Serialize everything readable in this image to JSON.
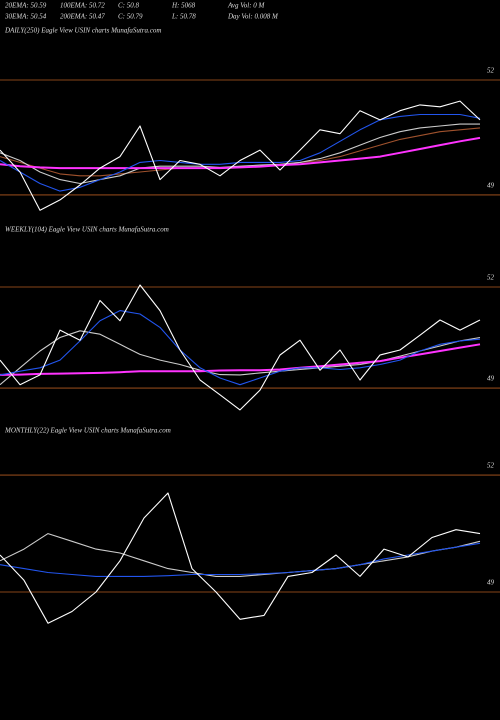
{
  "header_stats": [
    [
      "20EMA: 50.59",
      "100EMA: 50.72",
      "C: 50.8",
      "H: 5068",
      "Avg Vol: 0  M"
    ],
    [
      "30EMA: 50.54",
      "200EMA: 50.47",
      "C: 50.79",
      "L: 50.78",
      "Day Vol: 0.008 M"
    ]
  ],
  "chart_data": [
    {
      "type": "line",
      "title": "DAILY(250) Eagle  View  USIN  charts MunafaSutra.com",
      "ylim": [
        48.2,
        53
      ],
      "yticks": [
        49,
        52
      ],
      "grid": true,
      "series": [
        {
          "color": "#a0522d",
          "values": [
            50.0,
            49.85,
            49.7,
            49.55,
            49.5,
            49.5,
            49.55,
            49.6,
            49.65,
            49.7,
            49.7,
            49.7,
            49.72,
            49.75,
            49.8,
            49.85,
            49.9,
            50.0,
            50.15,
            50.3,
            50.45,
            50.55,
            50.65,
            50.7,
            50.75
          ]
        },
        {
          "color": "#cccccc",
          "values": [
            50.1,
            49.9,
            49.6,
            49.4,
            49.3,
            49.4,
            49.5,
            49.7,
            49.75,
            49.75,
            49.75,
            49.72,
            49.75,
            49.78,
            49.8,
            49.85,
            49.95,
            50.1,
            50.3,
            50.5,
            50.65,
            50.75,
            50.8,
            50.85,
            50.85
          ]
        },
        {
          "color": "#ff33ff",
          "values": [
            49.8,
            49.75,
            49.72,
            49.7,
            49.7,
            49.7,
            49.7,
            49.7,
            49.7,
            49.7,
            49.7,
            49.7,
            49.72,
            49.74,
            49.78,
            49.8,
            49.85,
            49.9,
            49.95,
            50.0,
            50.1,
            50.2,
            50.3,
            50.4,
            50.49
          ]
        },
        {
          "color": "#2255ee",
          "values": [
            49.9,
            49.6,
            49.3,
            49.1,
            49.2,
            49.4,
            49.6,
            49.85,
            49.9,
            49.85,
            49.8,
            49.8,
            49.85,
            49.85,
            49.85,
            49.9,
            50.1,
            50.4,
            50.7,
            50.96,
            51.05,
            51.1,
            51.1,
            51.1,
            51.0
          ]
        },
        {
          "color": "#ffffff",
          "values": [
            50.17,
            49.6,
            48.6,
            48.87,
            49.26,
            49.7,
            50.0,
            50.8,
            49.4,
            49.9,
            49.8,
            49.5,
            49.9,
            50.17,
            49.65,
            50.17,
            50.7,
            50.6,
            51.2,
            50.96,
            51.2,
            51.35,
            51.3,
            51.45,
            50.96
          ]
        }
      ]
    },
    {
      "type": "line",
      "title": "WEEKLY(104) Eagle  View  USIN  charts MunafaSutra.com",
      "ylim": [
        48.2,
        53.2
      ],
      "yticks": [
        49,
        52
      ],
      "grid": true,
      "series": [
        {
          "color": "#cccccc",
          "values": [
            49.1,
            49.6,
            50.1,
            50.5,
            50.7,
            50.6,
            50.3,
            50.0,
            49.83,
            49.7,
            49.53,
            49.4,
            49.39,
            49.45,
            49.5,
            49.55,
            49.6,
            49.65,
            49.7,
            49.8,
            49.95,
            50.1,
            50.25,
            50.4,
            50.5
          ]
        },
        {
          "color": "#ff33ff",
          "values": [
            49.39,
            49.4,
            49.42,
            49.43,
            49.44,
            49.45,
            49.47,
            49.5,
            49.5,
            49.5,
            49.5,
            49.52,
            49.53,
            49.53,
            49.55,
            49.6,
            49.65,
            49.7,
            49.75,
            49.8,
            49.9,
            50.0,
            50.1,
            50.2,
            50.3
          ]
        },
        {
          "color": "#2255ee",
          "values": [
            49.39,
            49.5,
            49.6,
            49.83,
            50.4,
            51.0,
            51.3,
            51.2,
            50.8,
            50.13,
            49.6,
            49.3,
            49.1,
            49.3,
            49.5,
            49.6,
            49.6,
            49.55,
            49.6,
            49.7,
            49.83,
            50.1,
            50.3,
            50.4,
            50.45
          ]
        },
        {
          "color": "#ffffff",
          "values": [
            49.83,
            49.1,
            49.39,
            50.72,
            50.42,
            51.6,
            51.0,
            52.06,
            51.3,
            50.13,
            49.24,
            48.8,
            48.35,
            48.94,
            49.98,
            50.42,
            49.53,
            50.13,
            49.24,
            49.98,
            50.13,
            50.57,
            51.02,
            50.72,
            51.02
          ]
        }
      ]
    },
    {
      "type": "line",
      "title": "MONTHLY(22) Eagle  View  USIN  charts MunafaSutra.com",
      "ylim": [
        47.8,
        52.9
      ],
      "yticks": [
        49,
        52
      ],
      "grid": true,
      "series": [
        {
          "color": "#cccccc",
          "values": [
            49.8,
            50.1,
            50.5,
            50.3,
            50.1,
            50.0,
            49.8,
            49.6,
            49.5,
            49.4,
            49.4,
            49.45,
            49.5,
            49.55,
            49.6,
            49.7,
            49.8,
            49.9,
            50.05,
            50.15,
            50.3
          ]
        },
        {
          "color": "#2255ee",
          "values": [
            49.7,
            49.6,
            49.5,
            49.45,
            49.4,
            49.4,
            49.4,
            49.42,
            49.45,
            49.45,
            49.45,
            49.47,
            49.5,
            49.55,
            49.6,
            49.7,
            49.85,
            49.95,
            50.05,
            50.15,
            50.25
          ]
        },
        {
          "color": "#ffffff",
          "values": [
            49.95,
            49.3,
            48.2,
            48.5,
            49.0,
            49.8,
            50.9,
            51.54,
            49.6,
            49.0,
            48.3,
            48.4,
            49.4,
            49.5,
            49.95,
            49.4,
            50.1,
            49.9,
            50.4,
            50.6,
            50.5
          ]
        }
      ]
    }
  ]
}
